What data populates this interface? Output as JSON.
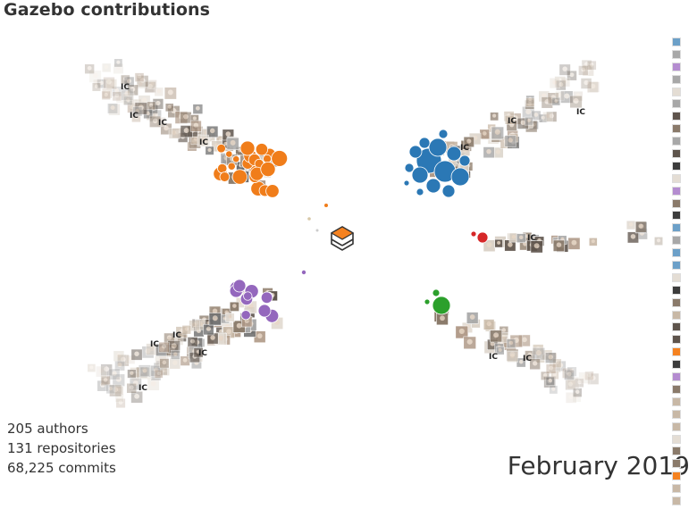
{
  "title": "Gazebo contributions",
  "stats": {
    "authors": "205 authors",
    "repositories": "131 repositories",
    "commits": "68,225 commits"
  },
  "date": "February 2019",
  "cluster_label": "IC",
  "colors": {
    "orange": "#f07d1a",
    "blue": "#2b78b5",
    "red": "#d62728",
    "green": "#2ca02c",
    "purple": "#9467bd",
    "logo_orange": "#f58220",
    "text": "#333333"
  },
  "icons": {
    "center": "gazebo-logo-icon",
    "avatar": "contributor-avatar-icon"
  }
}
